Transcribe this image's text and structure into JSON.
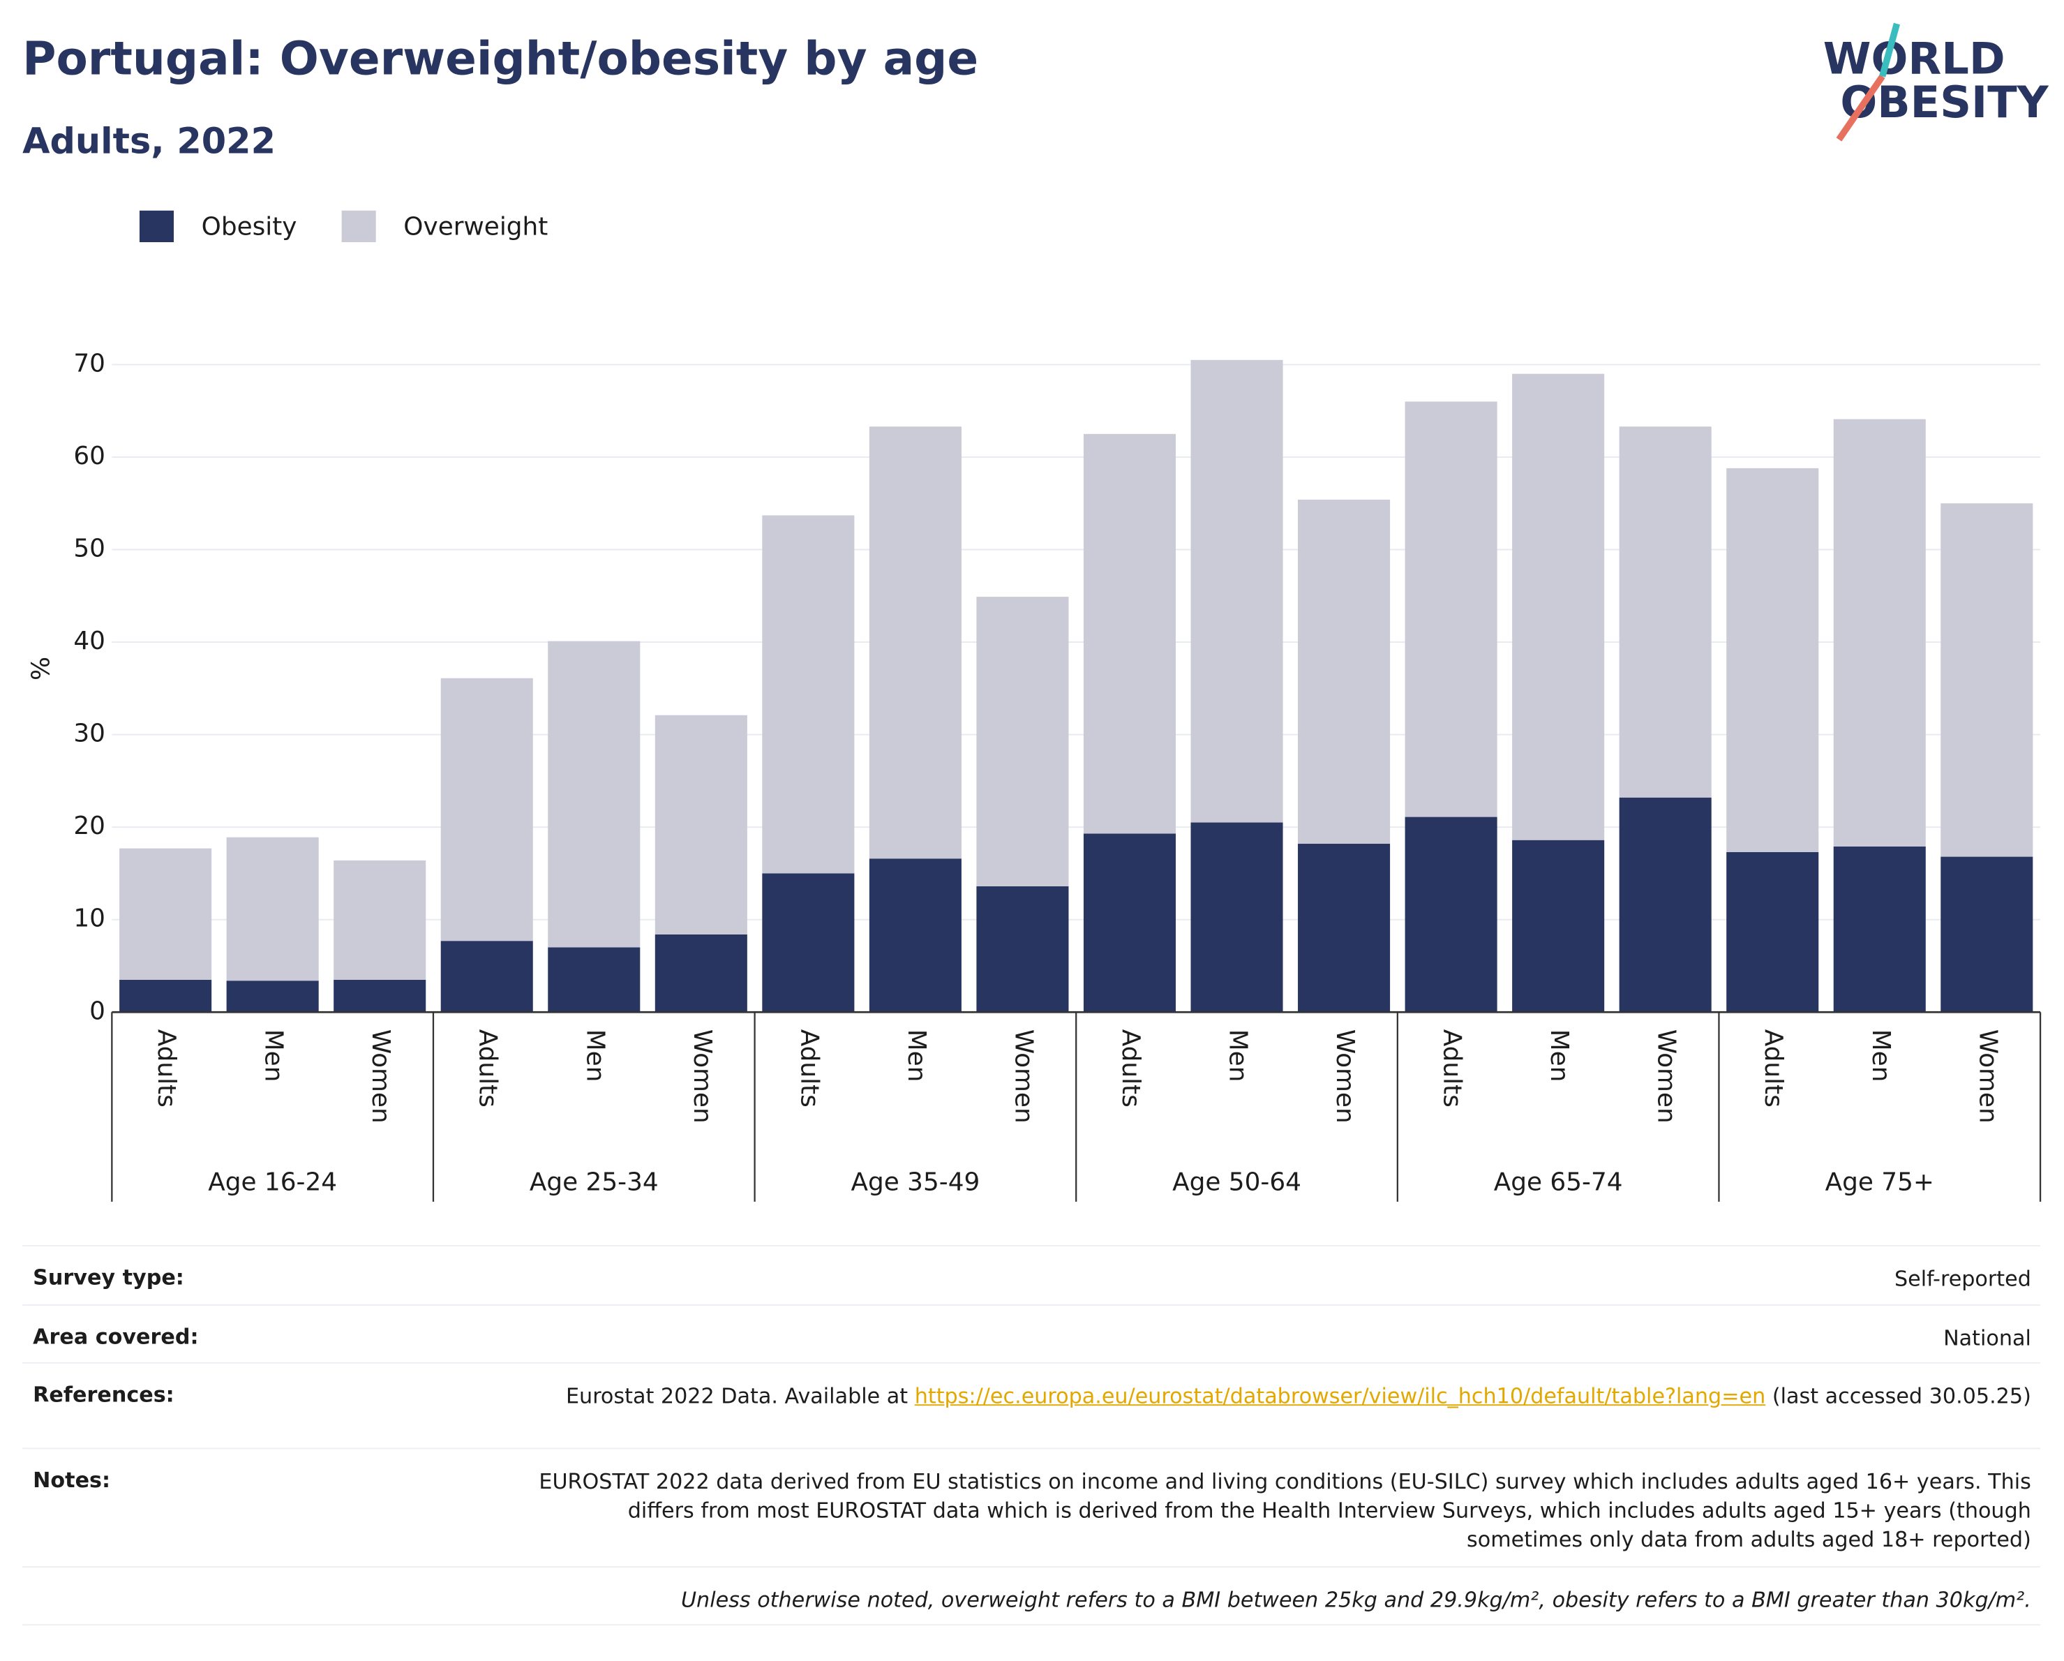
{
  "title": "Portugal: Overweight/obesity by age",
  "subtitle": "Adults, 2022",
  "logo": {
    "line1": "WORLD",
    "line2": "OBESITY"
  },
  "chart_data": {
    "type": "bar",
    "stacked": true,
    "ylabel": "%",
    "groups": [
      {
        "label": "Age 16-24",
        "categories": [
          "Adults",
          "Men",
          "Women"
        ]
      },
      {
        "label": "Age 25-34",
        "categories": [
          "Adults",
          "Men",
          "Women"
        ]
      },
      {
        "label": "Age 35-49",
        "categories": [
          "Adults",
          "Men",
          "Women"
        ]
      },
      {
        "label": "Age 50-64",
        "categories": [
          "Adults",
          "Men",
          "Women"
        ]
      },
      {
        "label": "Age 65-74",
        "categories": [
          "Adults",
          "Men",
          "Women"
        ]
      },
      {
        "label": "Age 75+",
        "categories": [
          "Adults",
          "Men",
          "Women"
        ]
      }
    ],
    "series": [
      {
        "name": "Obesity",
        "color": "#283560",
        "values": [
          3.5,
          3.4,
          3.5,
          7.7,
          7.0,
          8.4,
          15.0,
          16.6,
          13.6,
          19.3,
          20.5,
          18.2,
          21.1,
          18.6,
          23.2,
          17.3,
          17.9,
          16.8
        ]
      },
      {
        "name": "Overweight",
        "color": "#cacbd6",
        "values": [
          14.2,
          15.5,
          12.9,
          28.4,
          33.1,
          23.7,
          38.7,
          46.7,
          31.3,
          43.2,
          50.0,
          37.2,
          44.9,
          50.4,
          40.1,
          41.5,
          46.2,
          38.2
        ]
      }
    ],
    "ylim": [
      0,
      70
    ],
    "yticks": [
      0,
      10,
      20,
      30,
      40,
      50,
      60,
      70
    ],
    "grid": true,
    "legend": "top-left"
  },
  "table": {
    "rows": [
      {
        "label": "Survey type:",
        "value": "Self-reported"
      },
      {
        "label": "Area covered:",
        "value": "National"
      },
      {
        "label": "References:",
        "text_before": "Eurostat 2022 Data. Available at",
        "link": "https://ec.europa.eu/eurostat/databrowser/view/ilc_hch10/default/table?lang=en",
        "text_after": "(last accessed 30.05.25)"
      },
      {
        "label": "Notes:",
        "value": "EUROSTAT 2022 data derived from EU statistics on income and living conditions (EU-SILC) survey which includes adults aged 16+ years. This differs from most EUROSTAT data which is derived from the Health Interview Surveys, which includes adults aged 15+ years (though sometimes only data from adults aged 18+ reported)"
      }
    ],
    "footnote": "Unless otherwise noted, overweight refers to a BMI between 25kg and 29.9kg/m², obesity refers to a BMI greater than 30kg/m²."
  }
}
